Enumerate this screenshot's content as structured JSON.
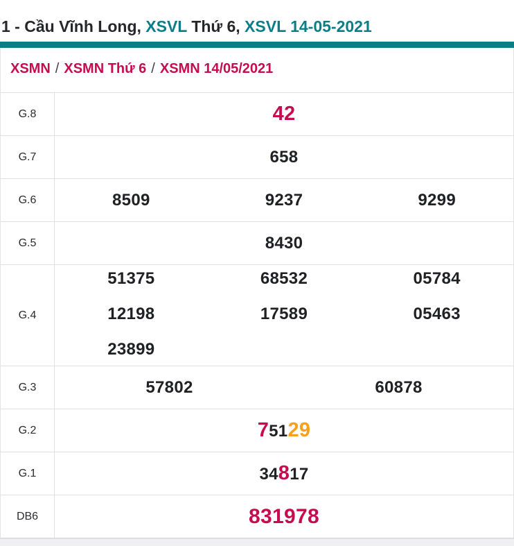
{
  "header": {
    "title_part1": "1 - Cầu Vĩnh Long, ",
    "title_part2": "XSVL",
    "title_part3": " Thứ 6, ",
    "title_part4": "XSVL 14-05-2021"
  },
  "breadcrumb": {
    "item1": "XSMN",
    "separator1": "/",
    "item2": "XSMN Thứ 6",
    "separator2": "/",
    "item3": "XSMN 14/05/2021"
  },
  "results": {
    "g8": {
      "label": "G.8",
      "value": "42"
    },
    "g7": {
      "label": "G.7",
      "value": "658"
    },
    "g6": {
      "label": "G.6",
      "value1": "8509",
      "value2": "9237",
      "value3": "9299"
    },
    "g5": {
      "label": "G.5",
      "value": "8430"
    },
    "g4": {
      "label": "G.4",
      "value1": "51375",
      "value2": "68532",
      "value3": "05784",
      "value4": "12198",
      "value5": "17589",
      "value6": "05463",
      "value7": "23899"
    },
    "g3": {
      "label": "G.3",
      "value1": "57802",
      "value2": "60878"
    },
    "g2": {
      "label": "G.2",
      "segment_red": "7",
      "segment_dark": "51",
      "segment_orange": "29"
    },
    "g1": {
      "label": "G.1",
      "segment_dark1": "34",
      "segment_red": "8",
      "segment_dark2": "17"
    },
    "db": {
      "label": "DB6",
      "value": "831978"
    }
  },
  "colors": {
    "teal_accent": "#0a7e87",
    "crimson_highlight": "#c60c4e",
    "orange_highlight": "#f7a11a",
    "dark_text": "#202125"
  }
}
